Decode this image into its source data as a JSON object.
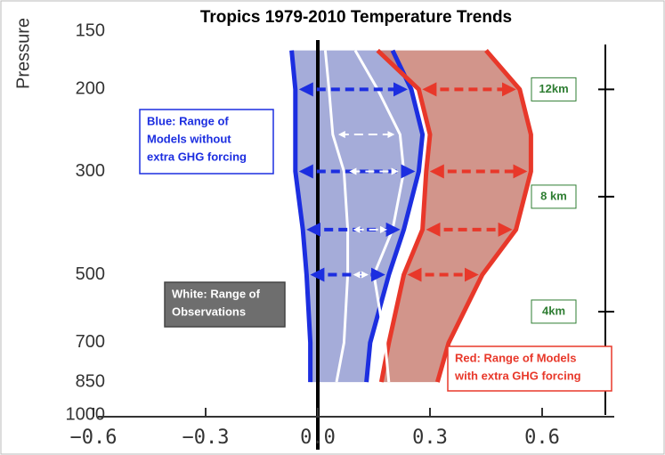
{
  "chart_data": {
    "type": "profile",
    "title": "Tropics 1979-2010 Temperature Trends",
    "ylabel": "Pressure",
    "y": [
      850,
      700,
      500,
      400,
      300,
      250,
      200,
      165
    ],
    "ylim": [
      1000,
      150
    ],
    "ylog": true,
    "yticks": [
      150,
      200,
      300,
      500,
      700,
      850,
      1000
    ],
    "xlim": [
      -0.65,
      0.78
    ],
    "xticks": [
      {
        "value": -0.6,
        "label": "−0.6"
      },
      {
        "value": -0.3,
        "label": "−0.3"
      },
      {
        "value": 0,
        "label": "0.0"
      },
      {
        "value": 0.3,
        "label": "0.3"
      },
      {
        "value": 0.6,
        "label": "0.6"
      }
    ],
    "y2ticks": [
      {
        "value": 200,
        "label": "12km"
      },
      {
        "value": 340,
        "label": "8 km"
      },
      {
        "value": 600,
        "label": "4km"
      }
    ],
    "series": [
      {
        "color": "#1c2ee0",
        "values": [
          -0.02,
          -0.02,
          -0.03,
          -0.04,
          -0.06,
          -0.06,
          -0.06,
          -0.07
        ]
      },
      {
        "color": "#1c2ee0",
        "values": [
          0.13,
          0.14,
          0.19,
          0.23,
          0.27,
          0.28,
          0.25,
          0.2
        ]
      },
      {
        "color": "#e8382a",
        "values": [
          0.17,
          0.19,
          0.23,
          0.28,
          0.29,
          0.3,
          0.27,
          0.16
        ]
      },
      {
        "color": "#e8382a",
        "values": [
          0.32,
          0.35,
          0.44,
          0.53,
          0.57,
          0.57,
          0.54,
          0.45
        ]
      },
      {
        "color": "#ffffff",
        "values": [
          0.05,
          0.07,
          0.08,
          0.08,
          0.07,
          0.04,
          0.03,
          0.02
        ]
      },
      {
        "color": "#ffffff",
        "values": [
          0.19,
          0.18,
          0.15,
          0.2,
          0.23,
          0.22,
          0.16,
          0.1
        ]
      }
    ],
    "bands": [
      {
        "series": [
          0,
          1
        ],
        "color": "#8f97cf"
      },
      {
        "series": [
          2,
          3
        ],
        "color": "#c77a6e"
      }
    ],
    "annotations": [
      {
        "lines": [
          "Blue: Range of",
          "Models without",
          "extra GHG forcing"
        ],
        "color": "#1c2ee0"
      },
      {
        "lines": [
          "White: Range of",
          "Observations"
        ],
        "color": "#ffffff"
      },
      {
        "lines": [
          "Red: Range of Models",
          "with extra GHG forcing"
        ],
        "color": "#e8382a"
      }
    ]
  }
}
